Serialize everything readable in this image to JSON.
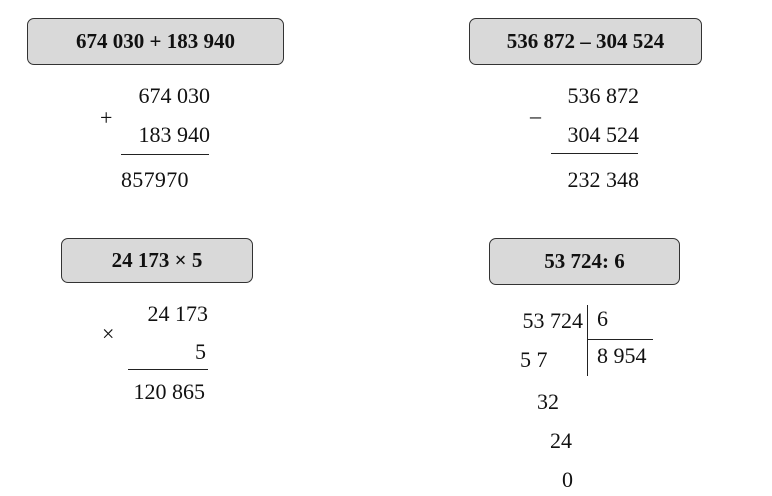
{
  "problems": [
    {
      "title": "674 030 + 183 940",
      "sign": "+",
      "operands": [
        "674 030",
        "183 940"
      ],
      "result": "857970"
    },
    {
      "title": "536 872 – 304 524",
      "sign": "–",
      "operands": [
        "536 872",
        "304 524"
      ],
      "result": "232 348"
    },
    {
      "title": "24 173 × 5",
      "sign": "×",
      "operands": [
        "24 173",
        "5"
      ],
      "result": "120 865"
    },
    {
      "title": "53 724: 6",
      "dividend": "53 724",
      "divisor": "6",
      "quotient": "8 954",
      "steps": [
        "5 7",
        "32",
        "24",
        "0"
      ]
    }
  ]
}
